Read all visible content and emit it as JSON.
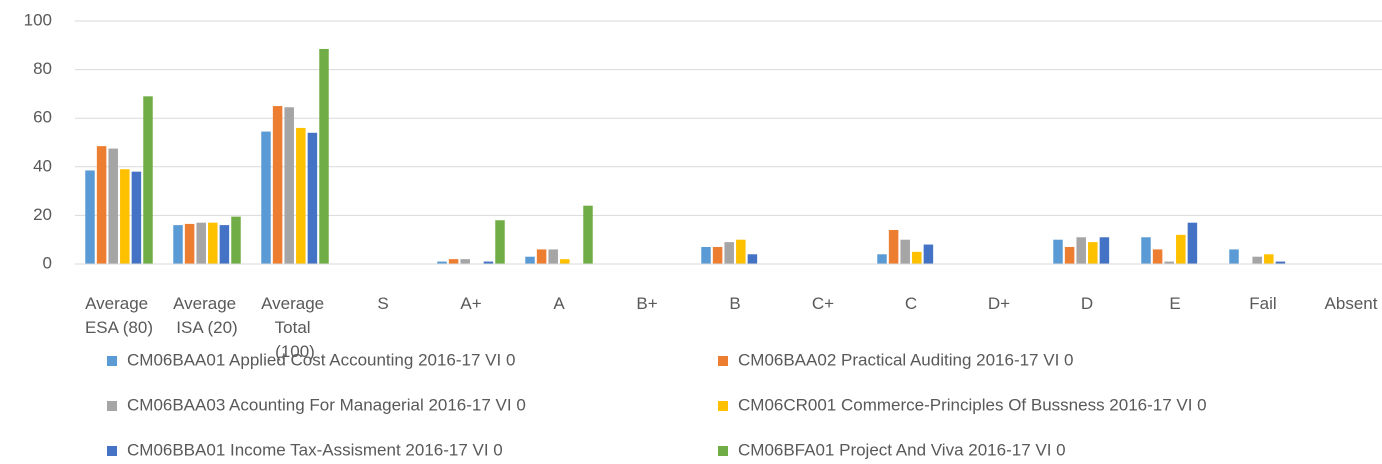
{
  "chart_data": {
    "type": "bar",
    "categories": [
      "Average ESA (80)",
      "Average ISA (20)",
      "Average Total (100)",
      "S",
      "A+",
      "A",
      "B+",
      "B",
      "C+",
      "C",
      "D+",
      "D",
      "E",
      "Fail",
      "Absent"
    ],
    "series": [
      {
        "name": "CM06BAA01 Applied Cost Accounting 2016-17 VI 0",
        "color": "#5b9bd5",
        "values": [
          38.5,
          16,
          54.5,
          0,
          1,
          3,
          0,
          7,
          0,
          4,
          0,
          10,
          11,
          6,
          0
        ]
      },
      {
        "name": "CM06BAA02 Practical Auditing 2016-17 VI 0",
        "color": "#ed7d31",
        "values": [
          48.5,
          16.5,
          65,
          0,
          2,
          6,
          0,
          7,
          0,
          14,
          0,
          7,
          6,
          0,
          0
        ]
      },
      {
        "name": "CM06BAA03 Acounting For Managerial 2016-17 VI 0",
        "color": "#a5a5a5",
        "values": [
          47.5,
          17,
          64.5,
          0,
          2,
          6,
          0,
          9,
          0,
          10,
          0,
          11,
          1,
          3,
          0
        ]
      },
      {
        "name": "CM06CR001 Commerce-Principles Of Bussness 2016-17 VI 0",
        "color": "#ffc000",
        "values": [
          39,
          17,
          56,
          0,
          0,
          2,
          0,
          10,
          0,
          5,
          0,
          9,
          12,
          4,
          0
        ]
      },
      {
        "name": "CM06BBA01 Income Tax-Assisment 2016-17 VI 0",
        "color": "#4472c4",
        "values": [
          38,
          16,
          54,
          0,
          1,
          0,
          0,
          4,
          0,
          8,
          0,
          11,
          17,
          1,
          0
        ]
      },
      {
        "name": "CM06BFA01 Project And Viva 2016-17 VI 0",
        "color": "#70ad47",
        "values": [
          69,
          19.5,
          88.5,
          0,
          18,
          24,
          0,
          0,
          0,
          0,
          0,
          0,
          0,
          0,
          0
        ]
      }
    ],
    "ylim": [
      0,
      100
    ],
    "yticks": [
      0,
      20,
      40,
      60,
      80,
      100
    ],
    "grid": true,
    "legend": "bottom"
  }
}
